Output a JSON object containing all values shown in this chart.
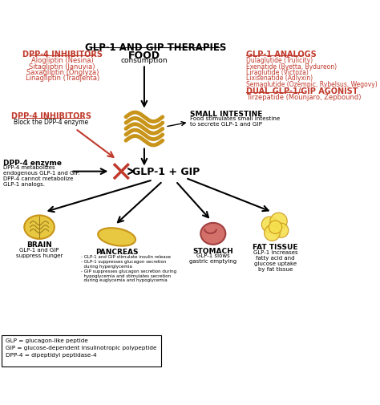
{
  "title": "GLP-1 AND GIP THERAPIES",
  "bg_color": "#ffffff",
  "red_color": "#c0392b",
  "black": "#000000",
  "gold": "#C8941A",
  "dpp4_inhibitors_title": "DPP-4 INHIBITORS",
  "dpp4_drugs": [
    "Alogliptin (Nesina)",
    "Sitagliptin (Januvia)",
    "Saxagliptin (Onglyza)",
    "Linagliptin (Tradjenta)"
  ],
  "glp1_analogs_title": "GLP-1 ANALOGS",
  "glp1_analogs": [
    "Dulaglutide (Trulicity)",
    "Exenatide (Byetta, Bydureon)",
    "Liraglutide (Victoza)",
    "Lixisenatide (Adlyxin)",
    "Semaglutide (Ozempic, Rybelsus, Wegovy)"
  ],
  "dual_title": "DUAL GLP-1/GIP AGONIST",
  "dual_drugs": [
    "Tirzepatide (Mounjaro, Zepbound)"
  ],
  "food_label": "FOOD",
  "food_sublabel": "consumption",
  "dpp4_inhibitors2_title": "DPP-4 INHIBITORS",
  "dpp4_inhibitors2_sub": "Block the DPP-4 enzyme",
  "dpp4_enzyme_title": "DPP-4 enzyme",
  "dpp4_enzyme_text": "DPP-4 metabolizes\nendogenous GLP-1 and GIP.\nDPP-4 cannot metabolize\nGLP-1 analogs.",
  "small_intestine_title": "SMALL INTESTINE",
  "small_intestine_text": "Food stimulates small intestine\nto secrete GLP-1 and GIP",
  "center_label": "GLP-1 + GIP",
  "brain_title": "BRAIN",
  "brain_text": "GLP-1 and GIP\nsuppress hunger",
  "pancreas_title": "PANCREAS",
  "pancreas_text": "- GLP-1 and GIP stimulate insulin release\n- GLP-1 suppresses glucagon secretion\n  during hyperglycemia\n- GIP suppresses glucagon secretion during\n  hypoglycemia and stimulates secretion\n  during euglycemia and hypoglycemia",
  "stomach_title": "STOMACH",
  "stomach_text": "GLP-1 slows\ngastric emptying",
  "fat_title": "FAT TISSUE",
  "fat_text": "GLP-1 increases\nfatty acid and\nglucose uptake\nby fat tissue",
  "legend_text": "GLP = glucagon-like peptide\nGIP = glucose-dependent insulinotropic polypeptide\nDPP-4 = dipeptidyl peptidase-4"
}
